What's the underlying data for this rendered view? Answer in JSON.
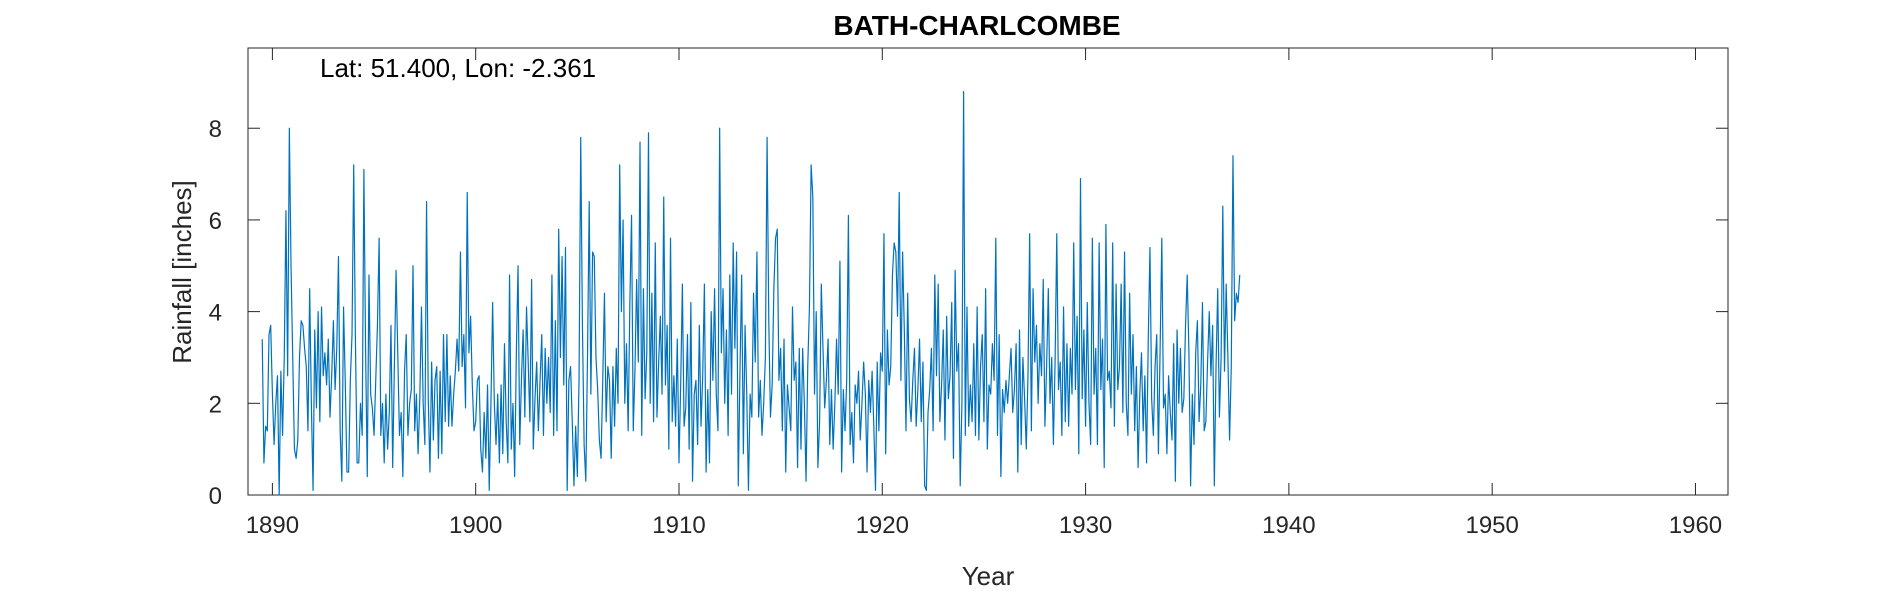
{
  "chart_data": {
    "type": "line",
    "title": "BATH-CHARLCOMBE",
    "xlabel": "Year",
    "ylabel": "Rainfall [inches]",
    "annotation": "Lat: 51.400, Lon: -2.361",
    "xlim": [
      1888.8,
      1961.6
    ],
    "ylim": [
      0,
      9.75
    ],
    "xticks": [
      1890,
      1900,
      1910,
      1920,
      1930,
      1940,
      1950,
      1960
    ],
    "yticks": [
      0,
      2,
      4,
      6,
      8
    ],
    "grid": false,
    "line_color": "#0072BD",
    "series": [
      {
        "x_start": 1889.5,
        "x_step": 0.083333,
        "values": [
          3.4,
          0.7,
          1.5,
          1.4,
          3.5,
          3.7,
          2.2,
          1.1,
          2.0,
          2.6,
          0.0,
          2.7,
          1.3,
          3.0,
          6.2,
          2.6,
          8.0,
          5.0,
          3.0,
          1.0,
          0.8,
          1.2,
          3.0,
          3.8,
          3.7,
          3.2,
          2.8,
          1.4,
          4.5,
          2.0,
          0.1,
          3.6,
          1.9,
          4.0,
          1.6,
          4.1,
          2.6,
          3.1,
          2.4,
          3.4,
          1.7,
          2.6,
          3.8,
          2.3,
          3.2,
          5.2,
          1.4,
          0.3,
          4.1,
          2.5,
          0.5,
          0.5,
          2.5,
          3.5,
          7.2,
          3.4,
          0.7,
          0.7,
          2.0,
          1.3,
          7.1,
          3.2,
          0.4,
          4.8,
          2.2,
          1.9,
          1.3,
          2.5,
          3.7,
          5.6,
          1.3,
          2.0,
          0.7,
          2.2,
          1.0,
          1.8,
          3.7,
          0.6,
          2.8,
          4.9,
          3.1,
          1.3,
          1.8,
          0.4,
          2.7,
          3.5,
          1.3,
          2.0,
          2.3,
          5.0,
          1.4,
          2.2,
          0.9,
          2.1,
          4.1,
          2.0,
          1.1,
          6.4,
          2.1,
          0.5,
          2.9,
          1.2,
          2.5,
          2.8,
          0.8,
          2.7,
          0.9,
          3.5,
          1.6,
          3.5,
          1.5,
          2.6,
          1.5,
          2.2,
          2.7,
          3.4,
          2.7,
          5.3,
          2.8,
          3.5,
          1.9,
          6.6,
          3.1,
          3.9,
          2.4,
          1.4,
          1.6,
          2.5,
          2.6,
          1.0,
          0.5,
          1.8,
          0.8,
          2.4,
          0.1,
          2.0,
          4.2,
          2.0,
          1.1,
          2.2,
          0.7,
          2.4,
          0.9,
          3.3,
          1.6,
          0.7,
          4.8,
          1.0,
          2.0,
          0.4,
          3.1,
          5.0,
          1.1,
          2.5,
          3.6,
          1.7,
          4.1,
          2.9,
          1.6,
          4.7,
          1.0,
          2.1,
          2.9,
          1.4,
          2.5,
          3.5,
          1.3,
          3.2,
          2.0,
          3.0,
          1.8,
          4.8,
          1.3,
          3.8,
          1.4,
          5.8,
          3.0,
          5.2,
          2.4,
          5.4,
          0.1,
          2.5,
          2.8,
          1.6,
          0.2,
          1.5,
          0.4,
          2.5,
          7.8,
          3.7,
          1.1,
          0.3,
          3.0,
          6.4,
          2.2,
          5.3,
          5.2,
          3.0,
          2.3,
          1.2,
          0.8,
          2.5,
          4.4,
          1.6,
          2.8,
          2.5,
          0.8,
          2.8,
          1.5,
          3.2,
          2.0,
          7.2,
          4.0,
          6.0,
          2.0,
          3.3,
          1.4,
          4.2,
          6.1,
          1.4,
          2.7,
          4.7,
          2.9,
          7.7,
          1.3,
          4.5,
          2.1,
          3.1,
          7.9,
          2.0,
          4.4,
          1.6,
          5.5,
          1.7,
          2.9,
          3.9,
          2.2,
          6.5,
          2.4,
          3.7,
          1.0,
          5.6,
          1.6,
          2.6,
          1.5,
          3.4,
          0.7,
          2.4,
          4.6,
          1.5,
          1.9,
          3.5,
          1.0,
          4.2,
          0.3,
          2.2,
          2.5,
          1.1,
          3.7,
          1.5,
          2.6,
          4.6,
          0.5,
          2.3,
          0.7,
          4.0,
          2.5,
          4.5,
          2.2,
          1.4,
          8.0,
          3.1,
          4.5,
          2.0,
          3.6,
          1.3,
          4.8,
          2.2,
          5.5,
          3.2,
          5.3,
          0.2,
          2.7,
          4.8,
          0.9,
          3.7,
          2.2,
          0.1,
          2.2,
          1.7,
          4.4,
          2.9,
          5.3,
          1.7,
          2.5,
          1.3,
          2.0,
          3.0,
          7.8,
          3.8,
          1.7,
          2.4,
          4.5,
          5.6,
          5.8,
          2.5,
          3.2,
          1.4,
          3.4,
          0.5,
          2.4,
          1.9,
          1.4,
          4.1,
          2.5,
          2.9,
          0.6,
          3.2,
          1.0,
          3.2,
          2.0,
          0.3,
          2.8,
          4.1,
          7.2,
          6.5,
          2.2,
          4.0,
          0.6,
          1.6,
          4.6,
          3.2,
          1.9,
          2.5,
          3.4,
          1.1,
          2.3,
          1.0,
          2.0,
          3.4,
          2.2,
          5.1,
          0.5,
          2.3,
          1.4,
          2.5,
          6.1,
          1.1,
          1.8,
          0.7,
          2.4,
          2.0,
          2.7,
          1.2,
          2.0,
          2.9,
          2.2,
          0.5,
          2.5,
          1.8,
          2.7,
          1.5,
          0.1,
          2.9,
          1.4,
          3.1,
          2.7,
          5.7,
          0.9,
          3.6,
          2.4,
          2.8,
          4.8,
          5.5,
          5.3,
          3.9,
          6.6,
          2.5,
          5.3,
          3.6,
          1.4,
          4.4,
          2.1,
          1.6,
          2.5,
          3.2,
          1.5,
          2.3,
          3.4,
          1.6,
          2.9,
          0.2,
          0.1,
          1.8,
          2.3,
          3.2,
          1.4,
          4.8,
          2.6,
          4.6,
          1.6,
          2.4,
          3.6,
          1.2,
          3.9,
          2.1,
          2.6,
          4.2,
          0.8,
          4.9,
          2.7,
          3.3,
          0.2,
          2.0,
          8.8,
          1.3,
          4.1,
          1.5,
          2.4,
          1.6,
          3.3,
          1.3,
          4.1,
          1.2,
          2.8,
          3.5,
          1.6,
          4.5,
          1.0,
          2.4,
          2.2,
          3.3,
          2.5,
          5.6,
          1.3,
          3.5,
          0.4,
          2.3,
          1.8,
          2.5,
          2.0,
          2.6,
          3.2,
          1.8,
          2.3,
          3.3,
          0.5,
          3.6,
          1.1,
          3.0,
          2.1,
          1.0,
          2.6,
          5.7,
          1.4,
          4.5,
          2.9,
          3.7,
          2.0,
          3.3,
          2.6,
          4.7,
          1.5,
          2.8,
          4.5,
          2.0,
          3.0,
          1.1,
          2.9,
          5.7,
          2.3,
          2.9,
          1.3,
          4.1,
          1.6,
          3.3,
          1.5,
          3.2,
          2.2,
          5.5,
          2.3,
          3.9,
          0.9,
          6.9,
          2.1,
          3.6,
          1.5,
          4.2,
          2.0,
          1.1,
          5.6,
          2.2,
          3.2,
          1.1,
          5.5,
          2.3,
          3.4,
          0.6,
          5.9,
          2.5,
          2.7,
          1.9,
          5.5,
          1.5,
          4.6,
          2.3,
          2.8,
          4.6,
          1.8,
          5.3,
          2.0,
          1.3,
          4.4,
          2.2,
          3.5,
          1.4,
          2.8,
          0.6,
          2.2,
          3.1,
          1.4,
          2.6,
          0.7,
          3.4,
          5.4,
          2.1,
          1.3,
          2.8,
          3.5,
          0.9,
          3.2,
          5.6,
          1.9,
          2.2,
          0.9,
          2.6,
          1.8,
          1.2,
          3.3,
          0.3,
          3.6,
          2.0,
          3.2,
          1.8,
          2.1,
          3.7,
          4.8,
          3.1,
          0.2,
          2.2,
          1.1,
          3.1,
          3.8,
          1.6,
          2.4,
          4.2,
          1.4,
          1.6,
          2.9,
          4.0,
          2.6,
          3.7,
          0.2,
          2.8,
          4.5,
          1.7,
          3.0,
          6.3,
          2.7,
          4.6,
          3.0,
          1.2,
          2.8,
          7.4,
          3.8,
          4.4,
          4.2,
          4.8
        ]
      }
    ]
  }
}
